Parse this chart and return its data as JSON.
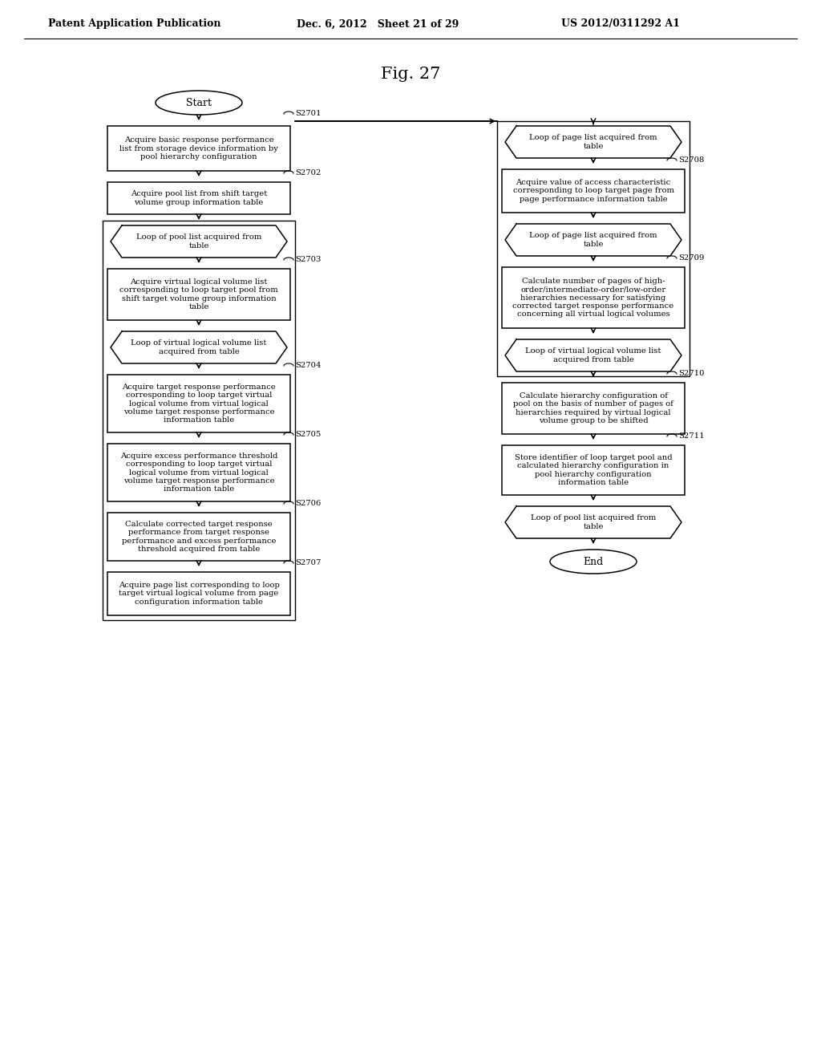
{
  "title": "Fig. 27",
  "header_left": "Patent Application Publication",
  "header_mid": "Dec. 6, 2012   Sheet 21 of 29",
  "header_right": "US 2012/0311292 A1",
  "left_nodes": [
    {
      "id": "start",
      "type": "oval",
      "text": "Start"
    },
    {
      "id": "S2701",
      "type": "rect",
      "label": "S2701",
      "text": "Acquire basic response performance\nlist from storage device information by\npool hierarchy configuration"
    },
    {
      "id": "S2702",
      "type": "rect",
      "label": "S2702",
      "text": "Acquire pool list from shift target\nvolume group information table"
    },
    {
      "id": "lp1",
      "type": "hex",
      "label": "",
      "text": "Loop of pool list acquired from\ntable"
    },
    {
      "id": "S2703",
      "type": "rect",
      "label": "S2703",
      "text": "Acquire virtual logical volume list\ncorresponding to loop target pool from\nshift target volume group information\ntable"
    },
    {
      "id": "lp2",
      "type": "hex",
      "label": "",
      "text": "Loop of virtual logical volume list\nacquired from table"
    },
    {
      "id": "S2704",
      "type": "rect",
      "label": "S2704",
      "text": "Acquire target response performance\ncorresponding to loop target virtual\nlogical volume from virtual logical\nvolume target response performance\ninformation table"
    },
    {
      "id": "S2705",
      "type": "rect",
      "label": "S2705",
      "text": "Acquire excess performance threshold\ncorresponding to loop target virtual\nlogical volume from virtual logical\nvolume target response performance\ninformation table"
    },
    {
      "id": "S2706",
      "type": "rect",
      "label": "S2706",
      "text": "Calculate corrected target response\nperformance from target response\nperformance and excess performance\nthreshold acquired from table"
    },
    {
      "id": "S2707",
      "type": "rect",
      "label": "S2707",
      "text": "Acquire page list corresponding to loop\ntarget virtual logical volume from page\nconfiguration information table"
    }
  ],
  "right_nodes": [
    {
      "id": "lp3",
      "type": "hex",
      "label": "",
      "text": "Loop of page list acquired from\ntable"
    },
    {
      "id": "S2708",
      "type": "rect",
      "label": "S2708",
      "text": "Acquire value of access characteristic\ncorresponding to loop target page from\npage performance information table"
    },
    {
      "id": "lp4",
      "type": "hex",
      "label": "",
      "text": "Loop of page list acquired from\ntable"
    },
    {
      "id": "S2709",
      "type": "rect",
      "label": "S2709",
      "text": "Calculate number of pages of high-\norder/intermediate-order/low-order\nhierarchies necessary for satisfying\ncorrected target response performance\nconcerning all virtual logical volumes"
    },
    {
      "id": "lp5",
      "type": "hex",
      "label": "",
      "text": "Loop of virtual logical volume list\nacquired from table"
    },
    {
      "id": "S2710",
      "type": "rect",
      "label": "S2710",
      "text": "Calculate hierarchy configuration of\npool on the basis of number of pages of\nhierarchies required by virtual logical\nvolume group to be shifted"
    },
    {
      "id": "S2711",
      "type": "rect",
      "label": "S2711",
      "text": "Store identifier of loop target pool and\ncalculated hierarchy configuration in\npool hierarchy configuration\ninformation table"
    },
    {
      "id": "lp6",
      "type": "hex",
      "label": "",
      "text": "Loop of pool list acquired from\ntable"
    },
    {
      "id": "end",
      "type": "oval",
      "label": "",
      "text": "End"
    }
  ]
}
